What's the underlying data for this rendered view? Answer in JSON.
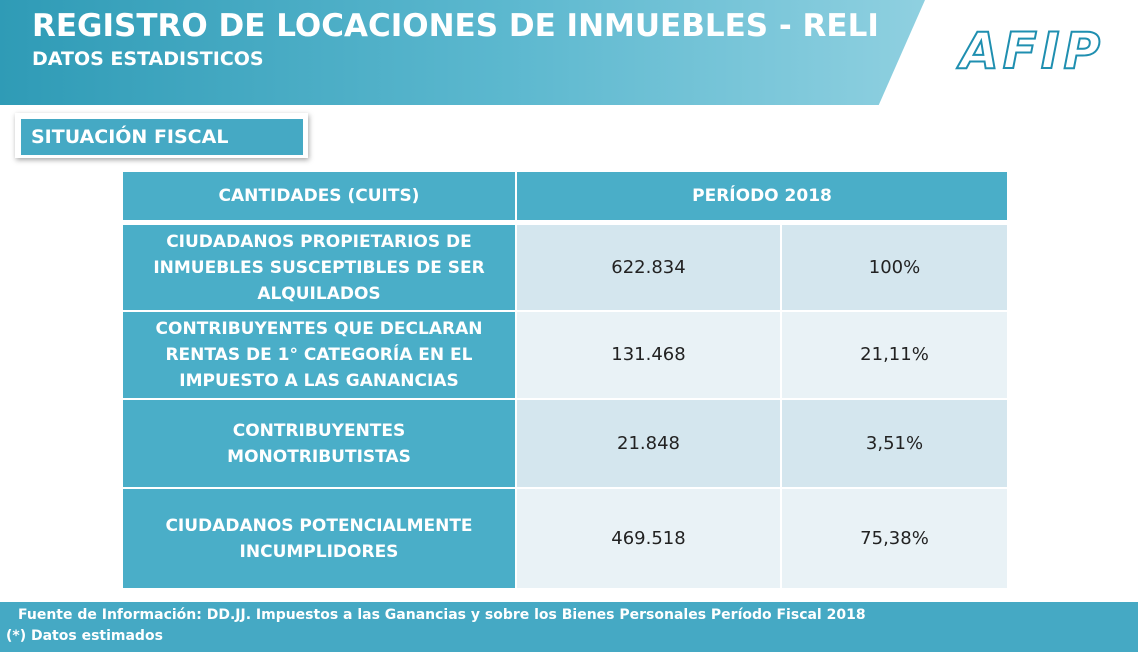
{
  "header": {
    "title": "REGISTRO DE LOCACIONES DE INMUEBLES - RELI",
    "subtitle": "DATOS ESTADISTICOS",
    "logo": "AFIP"
  },
  "section": "SITUACIÓN FISCAL",
  "table": {
    "headers": [
      "CANTIDADES (CUITS)",
      "PERÍODO  2018"
    ],
    "rows": [
      [
        "CIUDADANOS PROPIETARIOS  DE INMUEBLES SUSCEPTIBLES DE SER ALQUILADOS",
        "622.834",
        "100%"
      ],
      [
        "CONTRIBUYENTES QUE DECLARAN RENTAS DE 1° CATEGORÍA EN EL IMPUESTO A LAS  GANANCIAS",
        "131.468",
        "21,11%"
      ],
      [
        "CONTRIBUYENTES MONOTRIBUTISTAS",
        "21.848",
        "3,51%"
      ],
      [
        "CIUDADANOS  POTENCIALMENTE INCUMPLIDORES",
        "469.518",
        "75,38%"
      ]
    ]
  },
  "footer": {
    "source": "Fuente de Información: DD.JJ. Impuestos a las Ganancias y  sobre los Bienes Personales Período Fiscal 2018",
    "note": "(*) Datos estimados"
  }
}
